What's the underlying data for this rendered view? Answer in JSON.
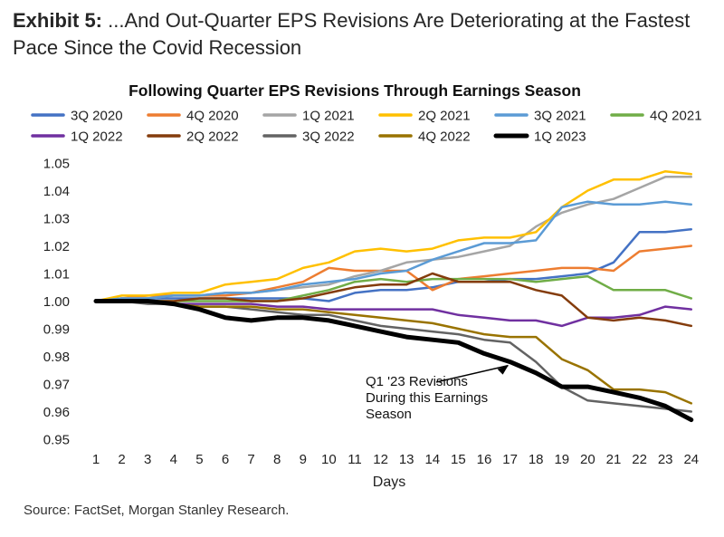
{
  "exhibit": {
    "label": "Exhibit 5:",
    "title": "...And Out-Quarter EPS Revisions Are Deteriorating at the Fastest Pace Since the Covid Recession"
  },
  "source": "Source: FactSet, Morgan Stanley Research.",
  "chart_data": {
    "type": "line",
    "title": "Following Quarter EPS Revisions Through Earnings Season",
    "xlabel": "Days",
    "ylabel": "",
    "x": [
      1,
      2,
      3,
      4,
      5,
      6,
      7,
      8,
      9,
      10,
      11,
      12,
      13,
      14,
      15,
      16,
      17,
      18,
      19,
      20,
      21,
      22,
      23,
      24
    ],
    "ylim": [
      0.95,
      1.05
    ],
    "yticks": [
      "1.05",
      "1.04",
      "1.03",
      "1.02",
      "1.01",
      "1.00",
      "0.99",
      "0.98",
      "0.97",
      "0.96",
      "0.95"
    ],
    "legend_position": "top",
    "annotation": {
      "lines": [
        "Q1 '23 Revisions",
        "During this Earnings",
        "Season"
      ],
      "points_to_day": 17,
      "points_to_value": 0.978
    },
    "series": [
      {
        "name": "3Q 2020",
        "color": "#4472C4",
        "width": 2.5,
        "values": [
          1.0,
          1.001,
          1.001,
          1.001,
          1.001,
          1.001,
          1.001,
          1.001,
          1.001,
          1.0,
          1.003,
          1.004,
          1.004,
          1.005,
          1.007,
          1.007,
          1.008,
          1.008,
          1.009,
          1.01,
          1.014,
          1.025,
          1.025,
          1.026
        ]
      },
      {
        "name": "4Q 2020",
        "color": "#ED7D31",
        "width": 2.5,
        "values": [
          1.0,
          1.001,
          1.002,
          1.002,
          1.002,
          1.002,
          1.003,
          1.005,
          1.007,
          1.012,
          1.011,
          1.011,
          1.011,
          1.004,
          1.008,
          1.009,
          1.01,
          1.011,
          1.012,
          1.012,
          1.011,
          1.018,
          1.019,
          1.02
        ]
      },
      {
        "name": "1Q 2021",
        "color": "#A5A5A5",
        "width": 2.5,
        "values": [
          1.0,
          1.001,
          1.001,
          1.002,
          1.002,
          1.003,
          1.003,
          1.004,
          1.005,
          1.006,
          1.009,
          1.011,
          1.014,
          1.015,
          1.016,
          1.018,
          1.02,
          1.027,
          1.032,
          1.035,
          1.037,
          1.041,
          1.045,
          1.045
        ]
      },
      {
        "name": "2Q 2021",
        "color": "#FFC000",
        "width": 2.5,
        "values": [
          1.0,
          1.002,
          1.002,
          1.003,
          1.003,
          1.006,
          1.007,
          1.008,
          1.012,
          1.014,
          1.018,
          1.019,
          1.018,
          1.019,
          1.022,
          1.023,
          1.023,
          1.025,
          1.034,
          1.04,
          1.044,
          1.044,
          1.047,
          1.046
        ]
      },
      {
        "name": "3Q 2021",
        "color": "#5B9BD5",
        "width": 2.5,
        "values": [
          1.0,
          1.001,
          1.001,
          1.002,
          1.002,
          1.003,
          1.003,
          1.004,
          1.006,
          1.007,
          1.008,
          1.01,
          1.011,
          1.015,
          1.018,
          1.021,
          1.021,
          1.022,
          1.034,
          1.036,
          1.035,
          1.035,
          1.036,
          1.035
        ]
      },
      {
        "name": "4Q 2021",
        "color": "#70AD47",
        "width": 2.5,
        "values": [
          1.0,
          1.0,
          1.0,
          1.0,
          1.0,
          1.0,
          1.0,
          1.0,
          1.002,
          1.004,
          1.007,
          1.008,
          1.007,
          1.008,
          1.008,
          1.008,
          1.008,
          1.007,
          1.008,
          1.009,
          1.004,
          1.004,
          1.004,
          1.001
        ]
      },
      {
        "name": "1Q 2022",
        "color": "#7030A0",
        "width": 2.5,
        "values": [
          1.0,
          1.0,
          1.0,
          0.999,
          0.999,
          0.999,
          0.999,
          0.998,
          0.998,
          0.997,
          0.997,
          0.997,
          0.997,
          0.997,
          0.995,
          0.994,
          0.993,
          0.993,
          0.991,
          0.994,
          0.994,
          0.995,
          0.998,
          0.997
        ]
      },
      {
        "name": "2Q 2022",
        "color": "#843C0C",
        "width": 2.5,
        "values": [
          1.0,
          1.0,
          1.0,
          1.0,
          1.001,
          1.001,
          1.0,
          1.0,
          1.001,
          1.003,
          1.005,
          1.006,
          1.006,
          1.01,
          1.007,
          1.007,
          1.007,
          1.004,
          1.002,
          0.994,
          0.993,
          0.994,
          0.993,
          0.991
        ]
      },
      {
        "name": "3Q 2022",
        "color": "#636363",
        "width": 2.5,
        "values": [
          1.0,
          1.0,
          0.999,
          0.999,
          0.998,
          0.998,
          0.997,
          0.996,
          0.995,
          0.995,
          0.993,
          0.991,
          0.99,
          0.989,
          0.988,
          0.986,
          0.985,
          0.978,
          0.969,
          0.964,
          0.963,
          0.962,
          0.961,
          0.96
        ]
      },
      {
        "name": "4Q 2022",
        "color": "#997300",
        "width": 2.5,
        "values": [
          1.0,
          1.0,
          1.0,
          0.999,
          0.998,
          0.998,
          0.998,
          0.997,
          0.997,
          0.996,
          0.995,
          0.994,
          0.993,
          0.992,
          0.99,
          0.988,
          0.987,
          0.987,
          0.979,
          0.975,
          0.968,
          0.968,
          0.967,
          0.963
        ]
      },
      {
        "name": "1Q 2023",
        "color": "#000000",
        "width": 5,
        "values": [
          1.0,
          1.0,
          1.0,
          0.999,
          0.997,
          0.994,
          0.993,
          0.994,
          0.994,
          0.993,
          0.991,
          0.989,
          0.987,
          0.986,
          0.985,
          0.981,
          0.978,
          0.974,
          0.969,
          0.969,
          0.967,
          0.965,
          0.962,
          0.957
        ]
      }
    ]
  }
}
